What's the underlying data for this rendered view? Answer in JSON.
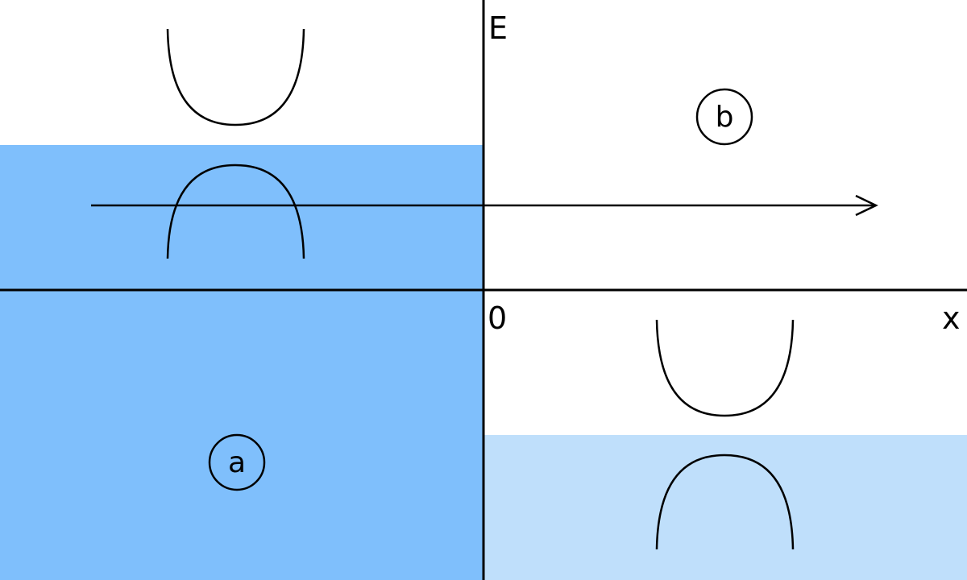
{
  "axes": {
    "y_label": "E",
    "x_label": "x",
    "origin_label": "0"
  },
  "regions": {
    "a": {
      "label": "a"
    },
    "b": {
      "label": "b"
    }
  },
  "colors": {
    "fill_dark": "#7fbffc",
    "fill_light": "#bfdffb",
    "stroke": "#000000",
    "background": "#ffffff"
  }
}
